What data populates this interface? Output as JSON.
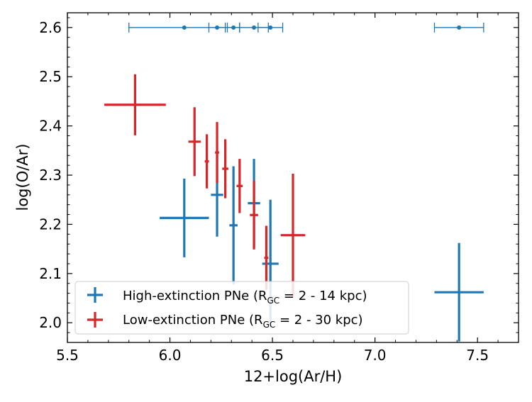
{
  "chart_data": {
    "type": "scatter",
    "xlabel": "12+log(Ar/H)",
    "ylabel": "log(O/Ar)",
    "xlim": [
      5.5,
      7.7
    ],
    "ylim": [
      1.96,
      2.63
    ],
    "xticks": [
      "5.5",
      "6.0",
      "6.5",
      "7.0",
      "7.5"
    ],
    "yticks": [
      "2.0",
      "2.1",
      "2.2",
      "2.3",
      "2.4",
      "2.5",
      "2.6"
    ],
    "series": [
      {
        "name": "High-extinction PNe",
        "legend_main": "High-extinction PNe (R",
        "legend_sub": "GC",
        "legend_range": " = 2 - 14 kpc)",
        "color": "#1f77b4",
        "points": [
          {
            "x": 6.07,
            "y": 2.213,
            "xerr": 0.12,
            "yerr": 0.08
          },
          {
            "x": 6.23,
            "y": 2.26,
            "xerr": 0.03,
            "yerr": 0.085
          },
          {
            "x": 6.31,
            "y": 2.198,
            "xerr": 0.02,
            "yerr": 0.12
          },
          {
            "x": 6.41,
            "y": 2.243,
            "xerr": 0.03,
            "yerr": 0.09
          },
          {
            "x": 6.49,
            "y": 2.12,
            "xerr": 0.04,
            "yerr": 0.13
          },
          {
            "x": 7.41,
            "y": 2.062,
            "xerr": 0.12,
            "yerr": 0.1
          }
        ],
        "topline_points": [
          {
            "x": 6.07,
            "xerr": 0.27
          },
          {
            "x": 6.23,
            "xerr": 0.04
          },
          {
            "x": 6.31,
            "xerr": 0.03
          },
          {
            "x": 6.41,
            "xerr": 0.07
          },
          {
            "x": 6.49,
            "xerr": 0.06
          },
          {
            "x": 7.41,
            "xerr": 0.12
          }
        ],
        "topline_y": 2.6
      },
      {
        "name": "Low-extinction PNe",
        "legend_main": "Low-extinction PNe (R",
        "legend_sub": "GC",
        "legend_range": " = 2 - 30 kpc)",
        "color": "#d62728",
        "points": [
          {
            "x": 5.83,
            "y": 2.443,
            "xerr": 0.15,
            "yerr": 0.062
          },
          {
            "x": 6.12,
            "y": 2.368,
            "xerr": 0.03,
            "yerr": 0.07
          },
          {
            "x": 6.18,
            "y": 2.328,
            "xerr": 0.01,
            "yerr": 0.055
          },
          {
            "x": 6.23,
            "y": 2.346,
            "xerr": 0.01,
            "yerr": 0.062
          },
          {
            "x": 6.27,
            "y": 2.313,
            "xerr": 0.015,
            "yerr": 0.06
          },
          {
            "x": 6.34,
            "y": 2.278,
            "xerr": 0.015,
            "yerr": 0.055
          },
          {
            "x": 6.41,
            "y": 2.219,
            "xerr": 0.02,
            "yerr": 0.07
          },
          {
            "x": 6.47,
            "y": 2.132,
            "xerr": 0.01,
            "yerr": 0.065
          },
          {
            "x": 6.6,
            "y": 2.178,
            "xerr": 0.06,
            "yerr": 0.125
          }
        ]
      }
    ]
  }
}
